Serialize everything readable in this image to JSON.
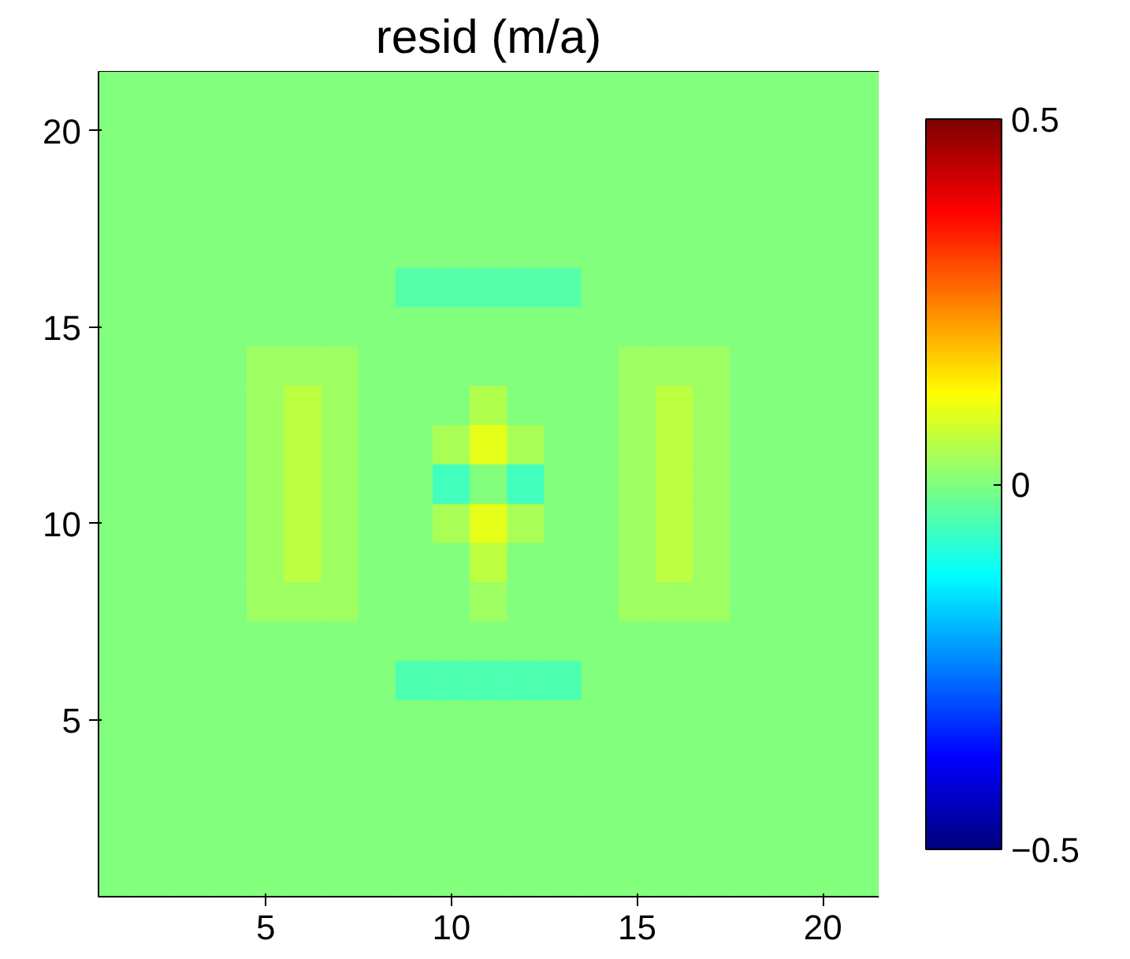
{
  "chart_data": {
    "type": "heatmap",
    "title": "resid (m/a)",
    "categories": [
      null,
      null,
      null,
      null,
      "5",
      null,
      null,
      null,
      null,
      "10",
      null,
      null,
      null,
      null,
      "15",
      null,
      null,
      null,
      null,
      "20",
      null
    ],
    "y_categories": [
      null,
      "20",
      null,
      null,
      null,
      null,
      "15",
      null,
      null,
      null,
      null,
      "10",
      null,
      null,
      null,
      null,
      "5",
      null,
      null,
      null,
      null
    ],
    "clim": [
      -0.5,
      0.5
    ],
    "cticks": [
      -0.5,
      0,
      0.5
    ],
    "cells": [
      [
        0,
        0,
        0,
        0,
        0,
        0,
        0,
        0,
        0,
        0,
        0,
        0,
        0,
        0,
        0,
        0,
        0,
        0,
        0,
        0,
        0
      ],
      [
        0,
        0,
        0,
        0,
        0,
        0,
        0,
        0,
        0,
        0,
        0,
        0,
        0,
        0,
        0,
        0,
        0,
        0,
        0,
        0,
        0
      ],
      [
        0,
        0,
        0,
        0,
        0,
        0,
        0,
        0,
        0,
        0,
        0,
        0,
        0,
        0,
        0,
        0,
        0,
        0,
        0,
        0,
        0
      ],
      [
        0,
        0,
        0,
        0,
        0,
        0,
        0,
        0,
        0,
        0,
        0,
        0,
        0,
        0,
        0,
        0,
        0,
        0,
        0,
        0,
        0
      ],
      [
        0,
        0,
        0,
        0,
        0,
        0,
        0,
        0,
        0,
        0,
        0,
        0,
        0,
        0,
        0,
        0,
        0,
        0,
        0,
        0,
        0
      ],
      [
        0,
        0,
        0,
        0,
        0,
        0,
        0,
        0,
        -0.04,
        -0.04,
        -0.04,
        -0.04,
        -0.04,
        0,
        0,
        0,
        0,
        0,
        0,
        0,
        0
      ],
      [
        0,
        0,
        0,
        0,
        0,
        0,
        0,
        0,
        0,
        0,
        0,
        0,
        0,
        0,
        0,
        0,
        0,
        0,
        0,
        0,
        0
      ],
      [
        0,
        0,
        0,
        0,
        0.03,
        0.03,
        0.03,
        0,
        0,
        0,
        0,
        0,
        0,
        0,
        0.03,
        0.03,
        0.03,
        0,
        0,
        0,
        0
      ],
      [
        0,
        0,
        0,
        0,
        0.03,
        0.06,
        0.03,
        0,
        0,
        0,
        0.05,
        0,
        0,
        0,
        0.03,
        0.06,
        0.03,
        0,
        0,
        0,
        0
      ],
      [
        0,
        0,
        0,
        0,
        0.03,
        0.06,
        0.03,
        0,
        0,
        0.04,
        0.1,
        0.04,
        0,
        0,
        0.03,
        0.06,
        0.03,
        0,
        0,
        0,
        0
      ],
      [
        0,
        0,
        0,
        0,
        0.03,
        0.06,
        0.03,
        0,
        0,
        -0.06,
        0,
        -0.06,
        0,
        0,
        0.03,
        0.06,
        0.03,
        0,
        0,
        0,
        0
      ],
      [
        0,
        0,
        0,
        0,
        0.03,
        0.06,
        0.03,
        0,
        0,
        0.04,
        0.1,
        0.04,
        0,
        0,
        0.03,
        0.06,
        0.03,
        0,
        0,
        0,
        0
      ],
      [
        0,
        0,
        0,
        0,
        0.03,
        0.06,
        0.03,
        0,
        0,
        0,
        0.06,
        0,
        0,
        0,
        0.03,
        0.06,
        0.03,
        0,
        0,
        0,
        0
      ],
      [
        0,
        0,
        0,
        0,
        0.03,
        0.03,
        0.03,
        0,
        0,
        0,
        0.03,
        0,
        0,
        0,
        0.03,
        0.03,
        0.03,
        0,
        0,
        0,
        0
      ],
      [
        0,
        0,
        0,
        0,
        0,
        0,
        0,
        0,
        0,
        0,
        0,
        0,
        0,
        0,
        0,
        0,
        0,
        0,
        0,
        0,
        0
      ],
      [
        0,
        0,
        0,
        0,
        0,
        0,
        0,
        0,
        -0.05,
        -0.05,
        -0.05,
        -0.05,
        -0.05,
        0,
        0,
        0,
        0,
        0,
        0,
        0,
        0
      ],
      [
        0,
        0,
        0,
        0,
        0,
        0,
        0,
        0,
        0,
        0,
        0,
        0,
        0,
        0,
        0,
        0,
        0,
        0,
        0,
        0,
        0
      ],
      [
        0,
        0,
        0,
        0,
        0,
        0,
        0,
        0,
        0,
        0,
        0,
        0,
        0,
        0,
        0,
        0,
        0,
        0,
        0,
        0,
        0
      ],
      [
        0,
        0,
        0,
        0,
        0,
        0,
        0,
        0,
        0,
        0,
        0,
        0,
        0,
        0,
        0,
        0,
        0,
        0,
        0,
        0,
        0
      ],
      [
        0,
        0,
        0,
        0,
        0,
        0,
        0,
        0,
        0,
        0,
        0,
        0,
        0,
        0,
        0,
        0,
        0,
        0,
        0,
        0,
        0
      ],
      [
        0,
        0,
        0,
        0,
        0,
        0,
        0,
        0,
        0,
        0,
        0,
        0,
        0,
        0,
        0,
        0,
        0,
        0,
        0,
        0,
        0
      ]
    ]
  }
}
